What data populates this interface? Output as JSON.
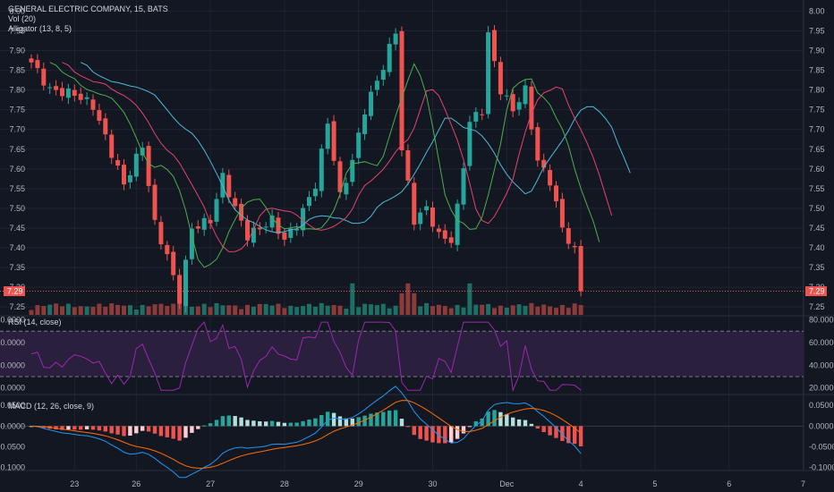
{
  "legend": {
    "title": "GENERAL ELECTRIC COMPANY, 15, BATS",
    "volume": "Vol (20)",
    "alligator": "Alligator (13, 8, 5)",
    "rsi": "RSI (14, close)",
    "macd": "MACD (12, 26, close, 9)"
  },
  "last_price_label": "7.29",
  "colors": {
    "background": "#131722",
    "grid": "#1f2432",
    "up": "#26a69a",
    "down": "#ef5350",
    "jaw": "#4fb9d6",
    "teeth": "#e5446d",
    "lips": "#4caf50",
    "rsi_line": "#9c27b0",
    "rsi_band": "#2a1f3d",
    "macd_line": "#2196f3",
    "signal_line": "#ff6d00",
    "text": "#b2b5be"
  },
  "chart_data": [
    {
      "type": "candlestick",
      "panel": "price",
      "ylim": [
        7.23,
        8.01
      ],
      "y_ticks": [
        "8.00",
        "7.95",
        "7.90",
        "7.85",
        "7.80",
        "7.75",
        "7.70",
        "7.65",
        "7.60",
        "7.55",
        "7.50",
        "7.45",
        "7.40",
        "7.35",
        "7.30",
        "7.25"
      ],
      "x_ticks": [
        "23",
        "26",
        "27",
        "28",
        "29",
        "30",
        "Dec",
        "4",
        "5",
        "6",
        "7"
      ],
      "close_anchors": [
        {
          "x": 0,
          "y": 7.87
        },
        {
          "x": 3,
          "y": 7.8
        },
        {
          "x": 7,
          "y": 7.79
        },
        {
          "x": 10,
          "y": 7.76
        },
        {
          "x": 13,
          "y": 7.64
        },
        {
          "x": 15,
          "y": 7.56
        },
        {
          "x": 18,
          "y": 7.66
        },
        {
          "x": 20,
          "y": 7.46
        },
        {
          "x": 22,
          "y": 7.38
        },
        {
          "x": 24,
          "y": 7.27
        },
        {
          "x": 26,
          "y": 7.45
        },
        {
          "x": 29,
          "y": 7.47
        },
        {
          "x": 31,
          "y": 7.58
        },
        {
          "x": 33,
          "y": 7.5
        },
        {
          "x": 35,
          "y": 7.43
        },
        {
          "x": 37,
          "y": 7.45
        },
        {
          "x": 39,
          "y": 7.47
        },
        {
          "x": 41,
          "y": 7.42
        },
        {
          "x": 43,
          "y": 7.46
        },
        {
          "x": 46,
          "y": 7.56
        },
        {
          "x": 48,
          "y": 7.72
        },
        {
          "x": 50,
          "y": 7.53
        },
        {
          "x": 52,
          "y": 7.62
        },
        {
          "x": 54,
          "y": 7.75
        },
        {
          "x": 57,
          "y": 7.86
        },
        {
          "x": 59,
          "y": 7.95
        },
        {
          "x": 60,
          "y": 7.65
        },
        {
          "x": 62,
          "y": 7.47
        },
        {
          "x": 64,
          "y": 7.5
        },
        {
          "x": 66,
          "y": 7.43
        },
        {
          "x": 68,
          "y": 7.42
        },
        {
          "x": 69,
          "y": 7.5
        },
        {
          "x": 71,
          "y": 7.72
        },
        {
          "x": 73,
          "y": 7.75
        },
        {
          "x": 74,
          "y": 7.94
        },
        {
          "x": 76,
          "y": 7.8
        },
        {
          "x": 78,
          "y": 7.75
        },
        {
          "x": 80,
          "y": 7.8
        },
        {
          "x": 82,
          "y": 7.62
        },
        {
          "x": 84,
          "y": 7.57
        },
        {
          "x": 86,
          "y": 7.45
        },
        {
          "x": 88,
          "y": 7.39
        },
        {
          "x": 89,
          "y": 7.29
        }
      ],
      "bars": 90,
      "volume_panel": true
    },
    {
      "type": "line",
      "panel": "rsi",
      "ylim": [
        15,
        82
      ],
      "y_ticks": [
        "80.0000",
        "60.0000",
        "40.0000",
        "20.0000"
      ],
      "bands": [
        70,
        30
      ]
    },
    {
      "type": "line",
      "panel": "macd",
      "ylim": [
        -0.105,
        0.072
      ],
      "y_ticks": [
        "0.0500",
        "0.0000",
        "-0.0500",
        "-0.1000"
      ]
    }
  ]
}
